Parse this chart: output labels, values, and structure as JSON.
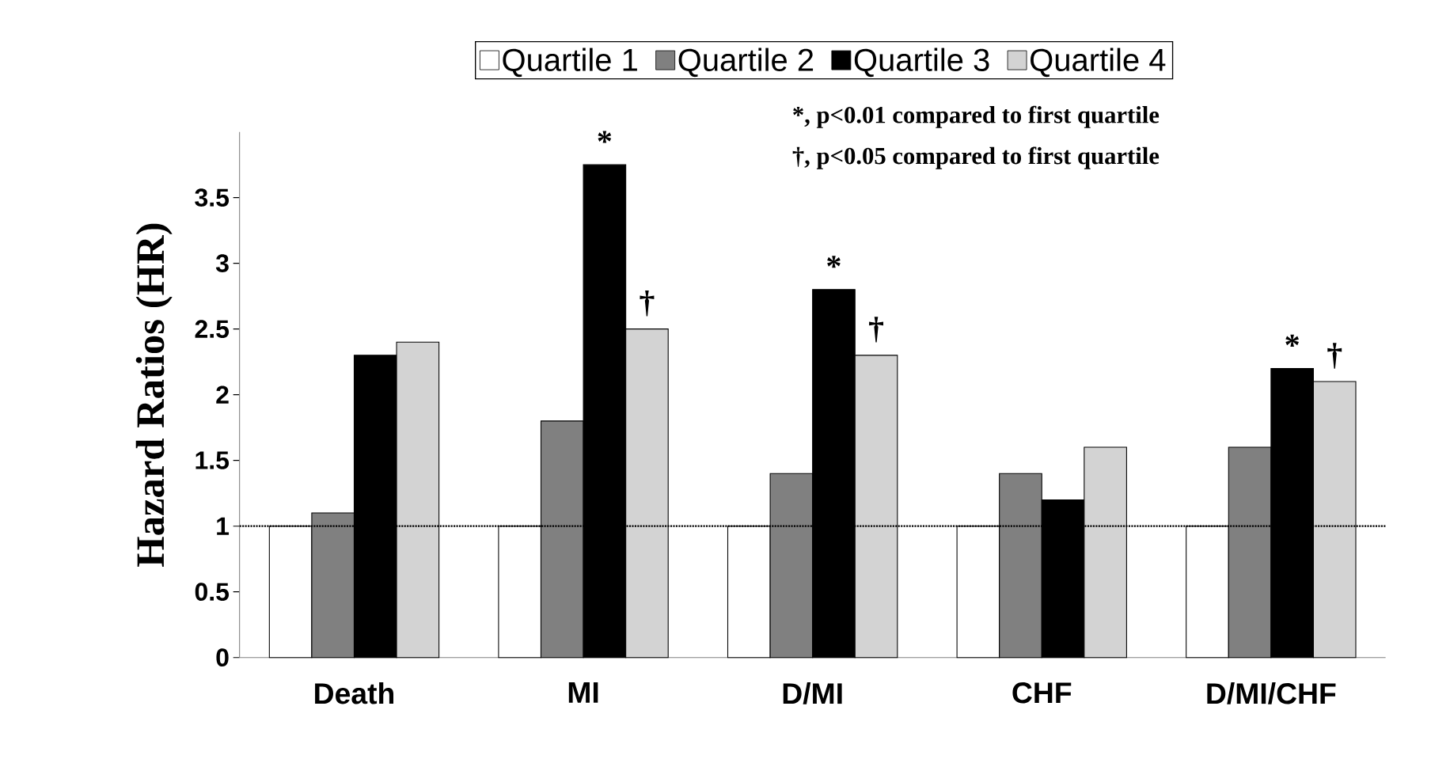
{
  "chart_data": {
    "type": "bar",
    "ylabel": "Hazard Ratios (HR)",
    "categories": [
      "Death",
      "MI",
      "D/MI",
      "CHF",
      "D/MI/CHF"
    ],
    "series": [
      {
        "name": "Quartile 1",
        "color": "#ffffff",
        "values": [
          1,
          1,
          1,
          1,
          1
        ]
      },
      {
        "name": "Quartile 2",
        "color": "#808080",
        "values": [
          1.1,
          1.8,
          1.4,
          1.4,
          1.6
        ]
      },
      {
        "name": "Quartile 3",
        "color": "#000000",
        "values": [
          2.3,
          3.75,
          2.8,
          1.2,
          2.2
        ]
      },
      {
        "name": "Quartile 4",
        "color": "#d3d3d3",
        "values": [
          2.4,
          2.5,
          2.3,
          1.6,
          2.1
        ]
      }
    ],
    "ylim": [
      0,
      4
    ],
    "yticks": [
      0,
      0.5,
      1,
      1.5,
      2,
      2.5,
      3,
      3.5
    ],
    "ref_lines": [
      {
        "axis": "y",
        "value": 1,
        "line_style": "dotted",
        "color": "#000000"
      }
    ],
    "annotations": [
      "*, p<0.01 compared to first quartile",
      "†, p<0.05 compared to first quartile",
      {
        "text": "*",
        "x": "MI",
        "y": 3.75
      },
      {
        "text": "†",
        "x": "MI",
        "y": 2.5
      },
      {
        "text": "*",
        "x": "D/MI",
        "y": 2.8
      },
      {
        "text": "†",
        "x": "D/MI",
        "y": 2.3
      },
      {
        "text": "*",
        "x": "D/MI/CHF",
        "y": 2.2
      },
      {
        "text": "†",
        "x": "D/MI/CHF",
        "y": 2.1
      }
    ],
    "legend": "top",
    "grid": false
  }
}
